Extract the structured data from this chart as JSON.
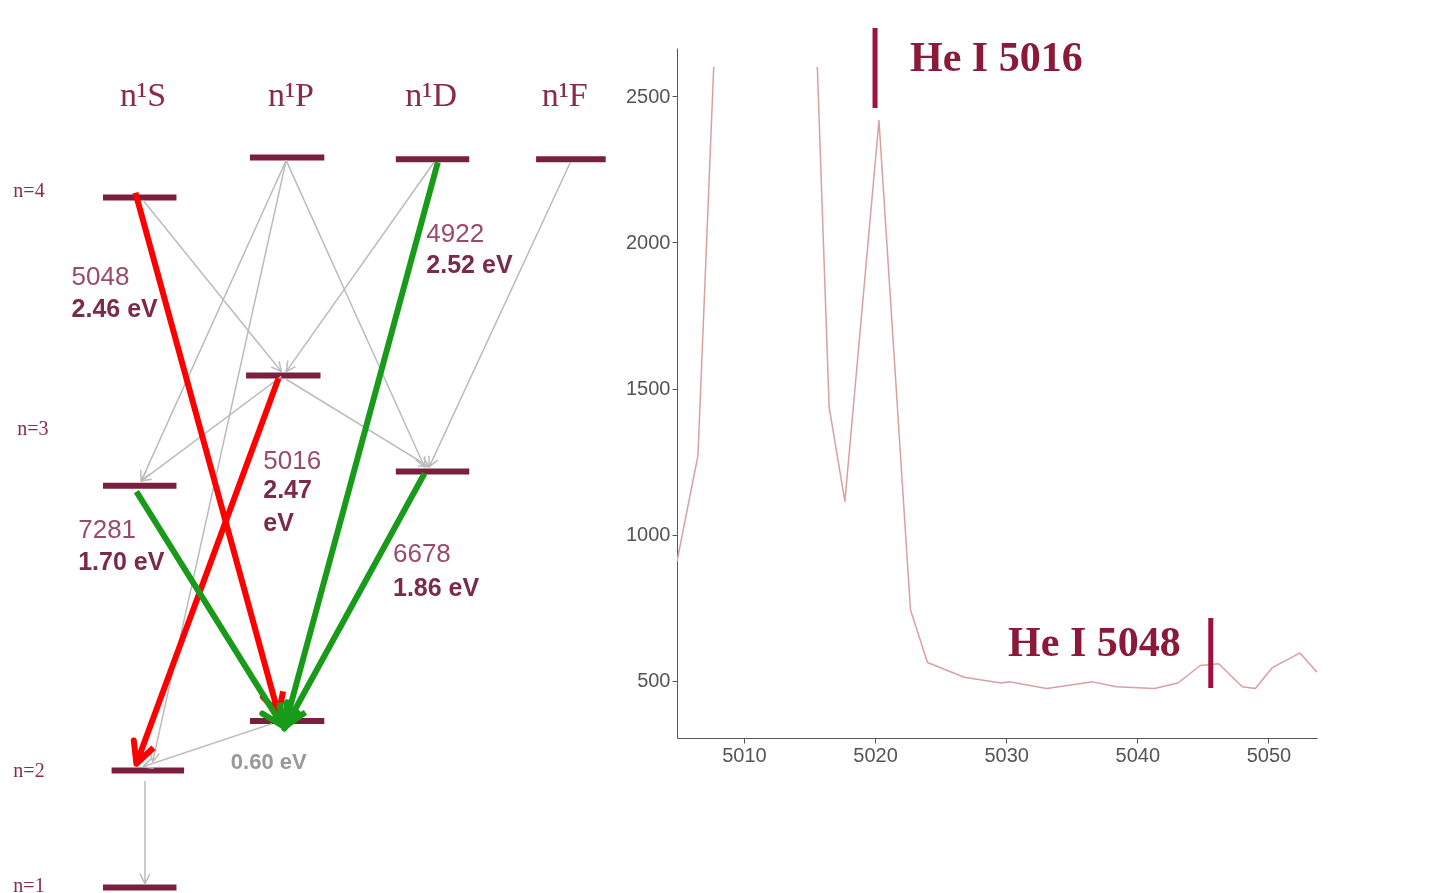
{
  "chart_data": [
    {
      "type": "other",
      "annotations": [
        "n¹S",
        "n¹P",
        "n¹D",
        "n¹F",
        "n=4",
        "n=3",
        "n=2",
        "n=1",
        "5048",
        "2.46 eV",
        "5016",
        "2.47 eV",
        "4922",
        "2.52 eV",
        "7281",
        "1.70 eV",
        "6678",
        "1.86 eV",
        "0.60 eV"
      ]
    },
    {
      "type": "line",
      "xlim": [
        5004.9,
        5053.7
      ],
      "ylim": [
        305,
        2665
      ],
      "xticks": [
        5010,
        5020,
        5030,
        5040,
        5050
      ],
      "yticks": [
        500,
        1000,
        1500,
        2000,
        2500
      ],
      "grid": false,
      "marker": "none",
      "x": [
        5004.9,
        5006.5,
        5007.7,
        5007.8,
        5015.5,
        5015.6,
        5016.5,
        5017.7,
        5020.3,
        5022.7,
        5024.0,
        5026.8,
        5029.6,
        5030.3,
        5033.1,
        5036.6,
        5038.4,
        5041.3,
        5043.1,
        5044.8,
        5046.2,
        5048.0,
        5049.0,
        5050.3,
        5052.4,
        5053.7
      ],
      "series": [
        {
          "color": "#d9a0a0",
          "values": [
            909,
            1272,
            2600,
            null,
            null,
            2600,
            1437,
            1114,
            2417,
            744,
            563,
            513,
            493,
            497,
            474,
            497,
            480,
            474,
            493,
            553,
            559,
            480,
            474,
            546,
            596,
            530
          ]
        }
      ],
      "ref_lines": [
        {
          "axis": "x",
          "value": 5020,
          "label": "He I 5016",
          "color": "#a0103a"
        },
        {
          "axis": "x",
          "value": 5045.6,
          "label": "He I 5048",
          "color": "#a0103a"
        }
      ]
    }
  ]
}
